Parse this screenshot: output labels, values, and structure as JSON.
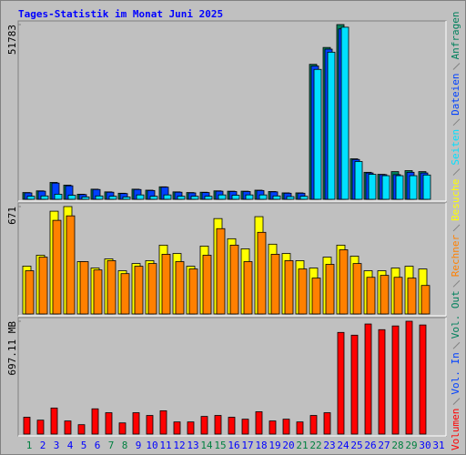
{
  "chart_data": {
    "type": "bar",
    "title": "Tages-Statistik im Monat Juni 2025",
    "categories": [
      "1",
      "2",
      "3",
      "4",
      "5",
      "6",
      "7",
      "8",
      "9",
      "10",
      "11",
      "12",
      "13",
      "14",
      "15",
      "16",
      "17",
      "18",
      "19",
      "20",
      "21",
      "22",
      "23",
      "24",
      "25",
      "26",
      "27",
      "28",
      "29",
      "30",
      "31"
    ],
    "category_colors": [
      "#008040",
      "#0000ff",
      "#0000ff",
      "#0000ff",
      "#0000ff",
      "#0000ff",
      "#008040",
      "#008040",
      "#0000ff",
      "#0000ff",
      "#0000ff",
      "#0000ff",
      "#0000ff",
      "#008040",
      "#008040",
      "#0000ff",
      "#0000ff",
      "#0000ff",
      "#0000ff",
      "#0000ff",
      "#008040",
      "#008040",
      "#0000ff",
      "#0000ff",
      "#0000ff",
      "#0000ff",
      "#0000ff",
      "#008040",
      "#008040",
      "#0000ff",
      "#0000ff"
    ],
    "legend": [
      {
        "name": "Volumen",
        "color": "#ff0000"
      },
      {
        "name": "Vol. In",
        "color": "#0040ff"
      },
      {
        "name": "Vol. Out",
        "color": "#00805c"
      },
      {
        "name": "Rechner",
        "color": "#ff8000"
      },
      {
        "name": "Besuche",
        "color": "#ffff00"
      },
      {
        "name": "Seiten",
        "color": "#00e0ff"
      },
      {
        "name": "Dateien",
        "color": "#0040ff"
      },
      {
        "name": "Anfragen",
        "color": "#00805c"
      }
    ],
    "panels": [
      {
        "ylim": [
          0,
          51783
        ],
        "yticks": [
          51783
        ],
        "series": [
          {
            "color": "#00805c",
            "values": [
              2000,
              2500,
              5000,
              4200,
              1500,
              3000,
              2200,
              1800,
              3000,
              2700,
              3700,
              2200,
              2000,
              2100,
              2500,
              2400,
              2400,
              2700,
              2300,
              1900,
              1900,
              40000,
              45000,
              51783,
              12000,
              8000,
              7400,
              8200,
              8500,
              8200,
              null
            ]
          },
          {
            "color": "#0040ff",
            "values": [
              1900,
              2400,
              4800,
              4000,
              1400,
              2900,
              2100,
              1700,
              2900,
              2600,
              3600,
              2100,
              1900,
              2000,
              2400,
              2300,
              2300,
              2600,
              2200,
              1800,
              1800,
              39500,
              44500,
              50500,
              11800,
              7800,
              7300,
              7300,
              8000,
              7800,
              null
            ]
          },
          {
            "color": "#00e0ff",
            "values": [
              900,
              1000,
              1500,
              1200,
              700,
              1000,
              900,
              700,
              1300,
              900,
              1300,
              900,
              900,
              900,
              1300,
              1200,
              1300,
              1300,
              1000,
              800,
              900,
              38500,
              43600,
              51000,
              11200,
              7400,
              7000,
              7000,
              7000,
              7200,
              null
            ]
          }
        ]
      },
      {
        "ylim": [
          0,
          671
        ],
        "yticks": [
          671
        ],
        "series": [
          {
            "color": "#ffff00",
            "values": [
              299,
              367,
              642,
              671,
              327,
              287,
              344,
              270,
              315,
              333,
              430,
              378,
              298,
              424,
              596,
              470,
              407,
              608,
              436,
              378,
              333,
              287,
              355,
              430,
              361,
              270,
              270,
              287,
              298,
              281,
              null
            ]
          },
          {
            "color": "#ff8000",
            "values": [
              270,
              355,
              585,
              613,
              327,
              275,
              333,
              252,
              298,
              315,
              373,
              327,
              281,
              367,
              533,
              430,
              327,
              510,
              373,
              333,
              281,
              224,
              310,
              401,
              315,
              229,
              241,
              229,
              224,
              178,
              null
            ]
          }
        ]
      },
      {
        "ylim": [
          0,
          697.11
        ],
        "yticks": [
          {
            "value": 697.11,
            "label": "697.11 MB"
          }
        ],
        "series": [
          {
            "color": "#ff0000",
            "values": [
              104,
              86,
              161,
              81,
              58,
              156,
              132,
              69,
              132,
              115,
              144,
              75,
              75,
              109,
              115,
              104,
              92,
              138,
              81,
              92,
              75,
              115,
              132,
              628,
              611,
              680,
              645,
              668,
              697.11,
              674,
              null
            ]
          }
        ]
      }
    ]
  }
}
